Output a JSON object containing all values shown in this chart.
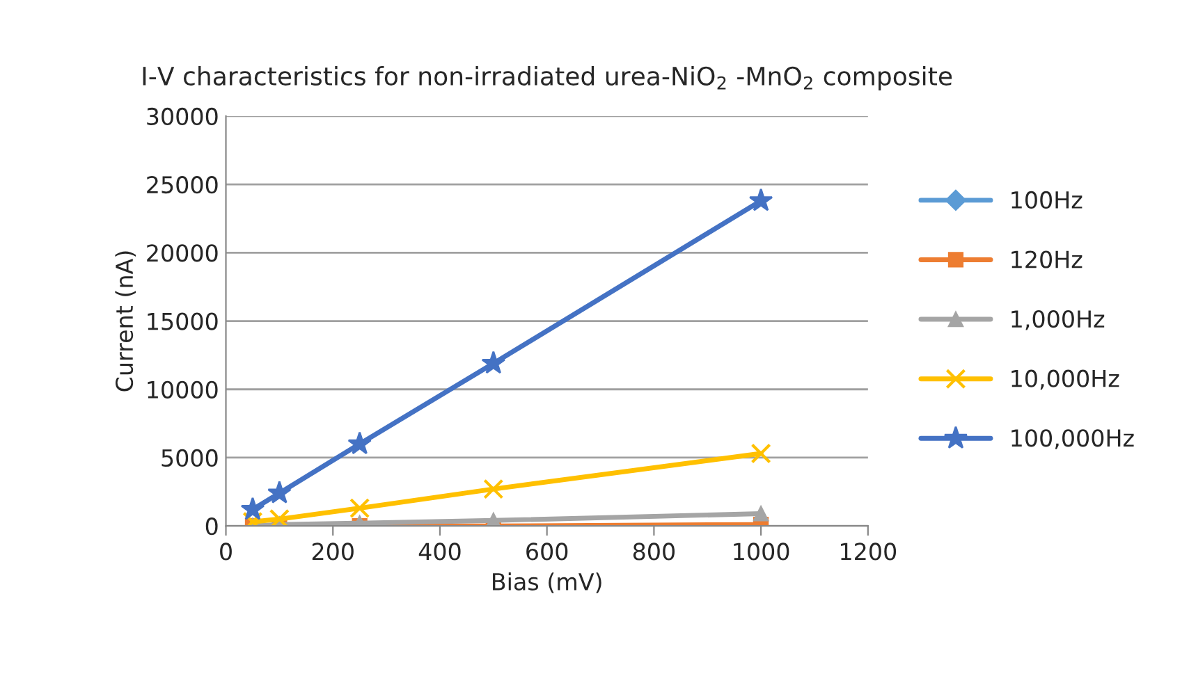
{
  "chart_data": {
    "type": "line",
    "title": "I-V characteristics for non-irradiated urea-NiO$_{2}$ -MnO$_{2}$ composite",
    "xlabel": "Bias (mV)",
    "ylabel": "Current (nA)",
    "x": [
      50,
      100,
      250,
      500,
      1000
    ],
    "series": [
      {
        "name": "100Hz",
        "color": "#5b9bd5",
        "marker": "diamond",
        "values": [
          null,
          null,
          null,
          null,
          null
        ]
      },
      {
        "name": "120Hz",
        "color": "#ed7d31",
        "marker": "square",
        "values": [
          0,
          0,
          0,
          0,
          100
        ]
      },
      {
        "name": "1,000Hz",
        "color": "#a5a5a5",
        "marker": "triangle",
        "values": [
          0,
          100,
          200,
          400,
          900
        ]
      },
      {
        "name": "10,000Hz",
        "color": "#ffc000",
        "marker": "cross",
        "values": [
          300,
          500,
          1300,
          2700,
          5300
        ]
      },
      {
        "name": "100,000Hz",
        "color": "#4472c4",
        "marker": "star",
        "values": [
          1200,
          2400,
          6000,
          11900,
          23800
        ]
      }
    ],
    "xlim": [
      0,
      1200
    ],
    "xticks": [
      0,
      200,
      400,
      600,
      800,
      1000,
      1200
    ],
    "ylim": [
      0,
      30000
    ],
    "yticks": [
      0,
      5000,
      10000,
      15000,
      20000,
      25000,
      30000
    ],
    "grid": "y",
    "legend": "right",
    "line_style": "solid"
  }
}
